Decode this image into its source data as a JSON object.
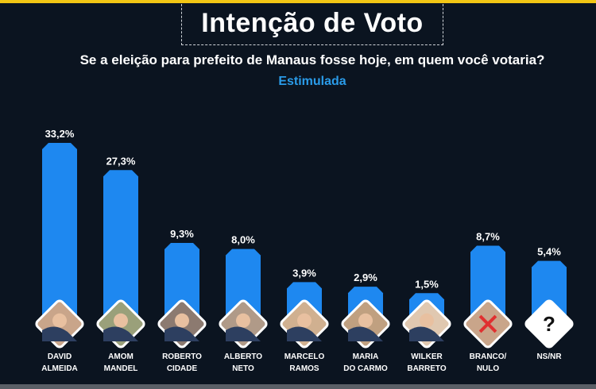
{
  "title": "Intenção de Voto",
  "subtitle": "Se a eleição para prefeito de Manaus fosse hoje, em quem você votaria?",
  "scenario": "Estimulada",
  "colors": {
    "bar": "#1e88f0",
    "background": "#0b1420",
    "accent": "#f2c614",
    "scenario": "#2a9be8"
  },
  "chart_data": {
    "type": "bar",
    "categories": [
      [
        "DAVID",
        "ALMEIDA"
      ],
      [
        "AMOM",
        "MANDEL"
      ],
      [
        "ROBERTO",
        "CIDADE"
      ],
      [
        "ALBERTO",
        "NETO"
      ],
      [
        "MARCELO",
        "RAMOS"
      ],
      [
        "MARIA",
        "DO CARMO"
      ],
      [
        "WILKER",
        "BARRETO"
      ],
      [
        "BRANCO/",
        "NULO"
      ],
      [
        "NS/NR",
        ""
      ]
    ],
    "values": [
      33.2,
      27.3,
      9.3,
      8.0,
      3.9,
      2.9,
      1.5,
      8.7,
      5.4
    ],
    "labels": [
      "33,2%",
      "27,3%",
      "9,3%",
      "8,0%",
      "3,9%",
      "2,9%",
      "1,5%",
      "8,7%",
      "5,4%"
    ],
    "icons": [
      "photo",
      "photo",
      "photo",
      "photo",
      "photo",
      "photo",
      "photo",
      "crossed-out-person-icon",
      "question-mark-icon"
    ],
    "question_mark": "?",
    "grid": false,
    "unit": "%"
  }
}
